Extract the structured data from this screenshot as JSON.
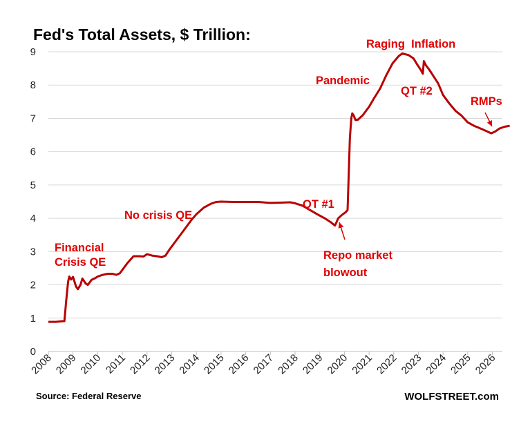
{
  "chart_data": {
    "type": "line",
    "title": "Fed's Total Assets, $ Trillion:",
    "xlabel": "",
    "ylabel": "",
    "ylim": [
      0,
      9
    ],
    "xlim": [
      2008,
      2026.7
    ],
    "y_ticks": [
      "0",
      "1",
      "2",
      "3",
      "4",
      "5",
      "6",
      "7",
      "8",
      "9"
    ],
    "x_ticks": [
      "2008",
      "2009",
      "2010",
      "2011",
      "2012",
      "2013",
      "2014",
      "2015",
      "2016",
      "2017",
      "2018",
      "2019",
      "2020",
      "2021",
      "2022",
      "2023",
      "2024",
      "2025",
      "2026"
    ],
    "grid": "horizontal",
    "colors": {
      "line": "#b80000",
      "annotation": "#e00000",
      "grid": "#d9d9d9"
    },
    "series": [
      {
        "points": [
          [
            2008.0,
            0.89
          ],
          [
            2008.3,
            0.89
          ],
          [
            2008.65,
            0.91
          ],
          [
            2008.72,
            1.5
          ],
          [
            2008.8,
            2.1
          ],
          [
            2008.85,
            2.25
          ],
          [
            2008.92,
            2.16
          ],
          [
            2009.0,
            2.24
          ],
          [
            2009.12,
            1.95
          ],
          [
            2009.2,
            1.87
          ],
          [
            2009.3,
            2.0
          ],
          [
            2009.38,
            2.19
          ],
          [
            2009.5,
            2.05
          ],
          [
            2009.6,
            2.0
          ],
          [
            2009.75,
            2.15
          ],
          [
            2009.9,
            2.2
          ],
          [
            2010.0,
            2.25
          ],
          [
            2010.2,
            2.3
          ],
          [
            2010.4,
            2.33
          ],
          [
            2010.6,
            2.33
          ],
          [
            2010.75,
            2.3
          ],
          [
            2010.9,
            2.35
          ],
          [
            2011.0,
            2.45
          ],
          [
            2011.2,
            2.65
          ],
          [
            2011.45,
            2.86
          ],
          [
            2011.7,
            2.86
          ],
          [
            2011.85,
            2.85
          ],
          [
            2012.0,
            2.92
          ],
          [
            2012.2,
            2.88
          ],
          [
            2012.4,
            2.86
          ],
          [
            2012.6,
            2.83
          ],
          [
            2012.75,
            2.88
          ],
          [
            2012.9,
            3.05
          ],
          [
            2013.2,
            3.35
          ],
          [
            2013.5,
            3.65
          ],
          [
            2013.8,
            3.95
          ],
          [
            2014.0,
            4.12
          ],
          [
            2014.3,
            4.32
          ],
          [
            2014.6,
            4.44
          ],
          [
            2014.8,
            4.49
          ],
          [
            2015.0,
            4.5
          ],
          [
            2015.5,
            4.49
          ],
          [
            2016.0,
            4.49
          ],
          [
            2016.5,
            4.49
          ],
          [
            2017.0,
            4.46
          ],
          [
            2017.5,
            4.47
          ],
          [
            2017.8,
            4.48
          ],
          [
            2018.0,
            4.45
          ],
          [
            2018.3,
            4.38
          ],
          [
            2018.6,
            4.25
          ],
          [
            2018.9,
            4.12
          ],
          [
            2019.2,
            4.0
          ],
          [
            2019.45,
            3.88
          ],
          [
            2019.62,
            3.78
          ],
          [
            2019.75,
            4.0
          ],
          [
            2019.9,
            4.1
          ],
          [
            2020.05,
            4.18
          ],
          [
            2020.13,
            4.25
          ],
          [
            2020.18,
            5.4
          ],
          [
            2020.22,
            6.4
          ],
          [
            2020.28,
            7.0
          ],
          [
            2020.32,
            7.15
          ],
          [
            2020.38,
            7.08
          ],
          [
            2020.45,
            6.95
          ],
          [
            2020.55,
            6.96
          ],
          [
            2020.75,
            7.1
          ],
          [
            2021.0,
            7.35
          ],
          [
            2021.2,
            7.6
          ],
          [
            2021.45,
            7.9
          ],
          [
            2021.7,
            8.3
          ],
          [
            2021.95,
            8.65
          ],
          [
            2022.2,
            8.87
          ],
          [
            2022.35,
            8.95
          ],
          [
            2022.6,
            8.9
          ],
          [
            2022.8,
            8.8
          ],
          [
            2022.95,
            8.62
          ],
          [
            2023.1,
            8.45
          ],
          [
            2023.18,
            8.34
          ],
          [
            2023.22,
            8.72
          ],
          [
            2023.3,
            8.6
          ],
          [
            2023.45,
            8.45
          ],
          [
            2023.6,
            8.28
          ],
          [
            2023.8,
            8.05
          ],
          [
            2024.0,
            7.7
          ],
          [
            2024.25,
            7.45
          ],
          [
            2024.5,
            7.23
          ],
          [
            2024.75,
            7.08
          ],
          [
            2025.0,
            6.88
          ],
          [
            2025.25,
            6.78
          ],
          [
            2025.5,
            6.7
          ],
          [
            2025.75,
            6.62
          ],
          [
            2025.95,
            6.55
          ],
          [
            2026.1,
            6.6
          ],
          [
            2026.3,
            6.7
          ],
          [
            2026.5,
            6.75
          ],
          [
            2026.7,
            6.78
          ]
        ]
      }
    ],
    "annotations": [
      {
        "lines": [
          "Financial",
          "Crisis QE"
        ]
      },
      {
        "lines": [
          "No crisis QE"
        ]
      },
      {
        "lines": [
          "QT #1"
        ]
      },
      {
        "lines": [
          "Repo market",
          "blowout"
        ]
      },
      {
        "lines": [
          "Pandemic"
        ]
      },
      {
        "lines": [
          "Raging  Inflation"
        ]
      },
      {
        "lines": [
          "QT #2"
        ]
      },
      {
        "lines": [
          "RMPs"
        ]
      }
    ],
    "source": "Source: Federal Reserve",
    "brand": "WOLFSTREET.com"
  }
}
